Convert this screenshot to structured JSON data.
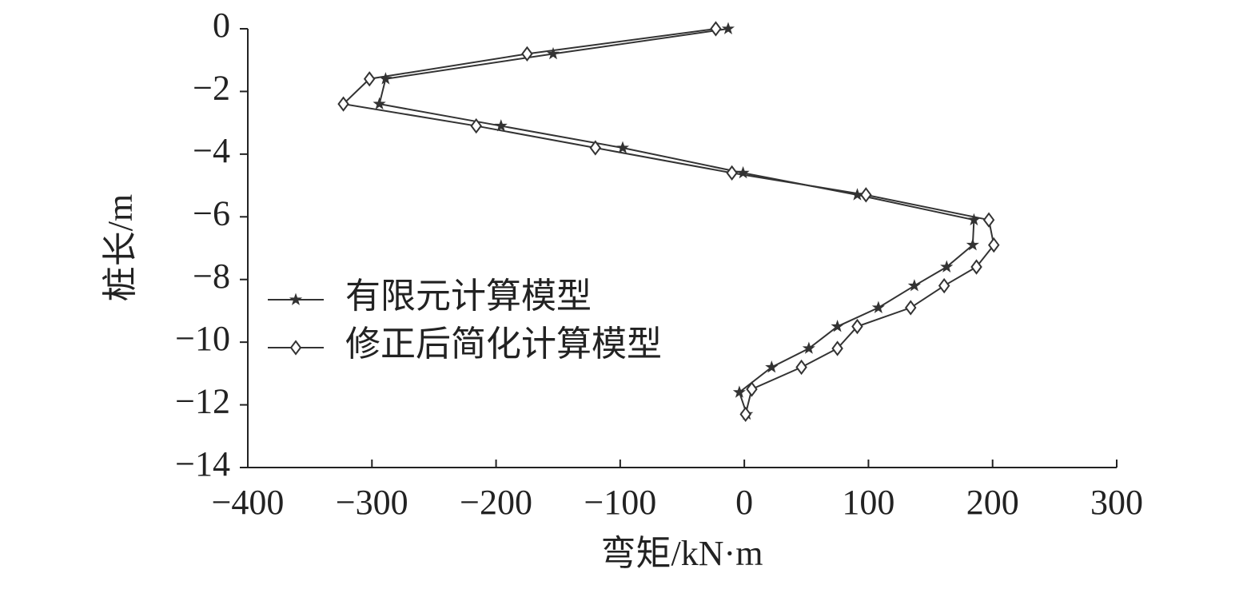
{
  "chart_data": {
    "type": "line",
    "x_label": "弯矩/kN·m",
    "y_label": "桩长/m",
    "xlim": [
      -400,
      300
    ],
    "xticks": [
      {
        "value": -400,
        "label": "−400"
      },
      {
        "value": -300,
        "label": "−300"
      },
      {
        "value": -200,
        "label": "−200"
      },
      {
        "value": -100,
        "label": "−100"
      },
      0,
      100,
      200,
      300
    ],
    "ylim": [
      -14,
      0
    ],
    "yticks": [
      0,
      {
        "value": -2,
        "label": "−2"
      },
      {
        "value": -4,
        "label": "−4"
      },
      {
        "value": -6,
        "label": "−6"
      },
      {
        "value": -8,
        "label": "−8"
      },
      {
        "value": -10,
        "label": "−10"
      },
      {
        "value": -12,
        "label": "−12"
      },
      {
        "value": -14,
        "label": "−14"
      }
    ],
    "legend": "left",
    "series": [
      {
        "name": "有限元计算模型",
        "color": "#333333",
        "marker": "star",
        "x": [
          -13,
          -154,
          -289,
          -294,
          -196,
          -98,
          -1,
          91,
          185,
          184,
          163,
          137,
          108,
          75,
          52,
          22,
          -4,
          2
        ],
        "values": [
          0,
          -0.8,
          -1.6,
          -2.4,
          -3.1,
          -3.8,
          -4.6,
          -5.3,
          -6.1,
          -6.9,
          -7.6,
          -8.2,
          -8.9,
          -9.5,
          -10.2,
          -10.8,
          -11.6,
          -12.3
        ]
      },
      {
        "name": "修正后简化计算模型",
        "color": "#333333",
        "marker": "diamond",
        "x": [
          -23,
          -175,
          -302,
          -323,
          -216,
          -120,
          -10,
          98,
          197,
          201,
          187,
          161,
          134,
          91,
          75,
          46,
          6,
          1
        ],
        "values": [
          0,
          -0.8,
          -1.6,
          -2.4,
          -3.1,
          -3.8,
          -4.6,
          -5.3,
          -6.1,
          -6.9,
          -7.6,
          -8.2,
          -8.9,
          -9.5,
          -10.2,
          -10.8,
          -11.5,
          -12.3
        ]
      }
    ]
  }
}
